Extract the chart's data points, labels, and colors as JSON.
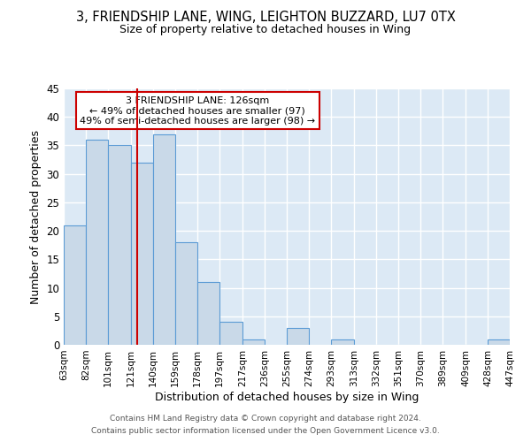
{
  "title": "3, FRIENDSHIP LANE, WING, LEIGHTON BUZZARD, LU7 0TX",
  "subtitle": "Size of property relative to detached houses in Wing",
  "xlabel": "Distribution of detached houses by size in Wing",
  "ylabel": "Number of detached properties",
  "bin_edges": [
    63,
    82,
    101,
    121,
    140,
    159,
    178,
    197,
    217,
    236,
    255,
    274,
    293,
    313,
    332,
    351,
    370,
    389,
    409,
    428,
    447
  ],
  "bar_heights": [
    21,
    36,
    35,
    32,
    37,
    18,
    11,
    4,
    1,
    0,
    3,
    0,
    1,
    0,
    0,
    0,
    0,
    0,
    0,
    1
  ],
  "bar_color": "#c9d9e8",
  "bar_edge_color": "#5b9bd5",
  "ylim": [
    0,
    45
  ],
  "yticks": [
    0,
    5,
    10,
    15,
    20,
    25,
    30,
    35,
    40,
    45
  ],
  "property_size": 126,
  "vline_color": "#cc0000",
  "annotation_text": "3 FRIENDSHIP LANE: 126sqm\n← 49% of detached houses are smaller (97)\n49% of semi-detached houses are larger (98) →",
  "annotation_box_color": "#cc0000",
  "footer_line1": "Contains HM Land Registry data © Crown copyright and database right 2024.",
  "footer_line2": "Contains public sector information licensed under the Open Government Licence v3.0.",
  "grid_color": "#ffffff",
  "background_color": "#dce9f5",
  "tick_labels": [
    "63sqm",
    "82sqm",
    "101sqm",
    "121sqm",
    "140sqm",
    "159sqm",
    "178sqm",
    "197sqm",
    "217sqm",
    "236sqm",
    "255sqm",
    "274sqm",
    "293sqm",
    "313sqm",
    "332sqm",
    "351sqm",
    "370sqm",
    "389sqm",
    "409sqm",
    "428sqm",
    "447sqm"
  ]
}
